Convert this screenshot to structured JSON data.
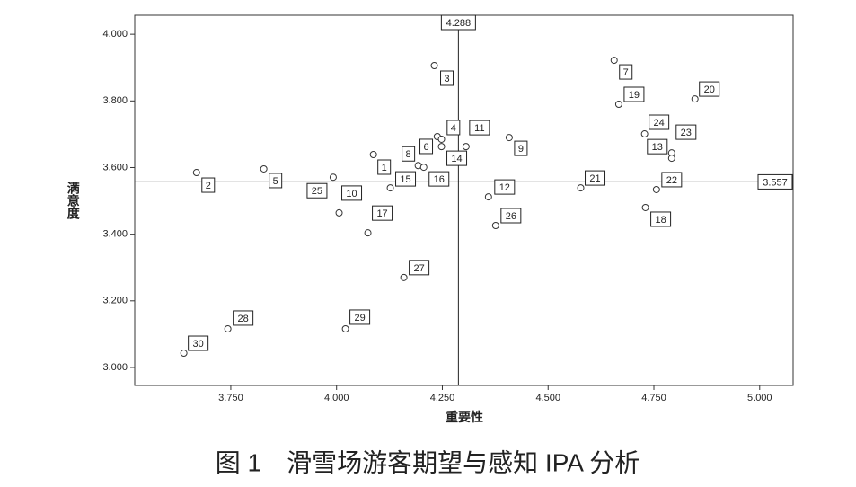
{
  "chart_data": {
    "type": "scatter",
    "x_label": "重要性",
    "y_label": "满意度",
    "caption": "图 1　滑雪场游客期望与感知 IPA 分析",
    "labels": [
      "1",
      "2",
      "3",
      "4",
      "5",
      "6",
      "7",
      "8",
      "9",
      "10",
      "11",
      "12",
      "13",
      "14",
      "15",
      "16",
      "17",
      "18",
      "19",
      "20",
      "21",
      "22",
      "23",
      "24",
      "25",
      "26",
      "27",
      "28",
      "29",
      "30"
    ],
    "x": [
      4.087,
      3.669,
      4.231,
      4.238,
      3.828,
      4.248,
      4.656,
      4.193,
      4.408,
      4.006,
      4.306,
      4.359,
      4.792,
      4.248,
      4.127,
      4.206,
      4.074,
      4.73,
      4.667,
      4.847,
      4.577,
      4.756,
      4.792,
      4.728,
      3.992,
      4.376,
      4.159,
      3.743,
      4.021,
      3.639
    ],
    "values": [
      3.639,
      3.585,
      3.906,
      3.693,
      3.596,
      3.685,
      3.922,
      3.606,
      3.69,
      3.464,
      3.663,
      3.512,
      3.644,
      3.663,
      3.539,
      3.601,
      3.404,
      3.48,
      3.79,
      3.806,
      3.539,
      3.534,
      3.628,
      3.701,
      3.571,
      3.426,
      3.27,
      3.116,
      3.116,
      3.043
    ],
    "ref_x": 4.288,
    "ref_y": 3.557,
    "xlim": [
      3.523,
      5.079
    ],
    "ylim": [
      2.946,
      4.057
    ],
    "xticks": [
      {
        "value": 3.75,
        "label": "3.750"
      },
      {
        "value": 4,
        "label": "4.000"
      },
      {
        "value": 4.25,
        "label": "4.250"
      },
      {
        "value": 4.5,
        "label": "4.500"
      },
      {
        "value": 4.75,
        "label": "4.750"
      },
      {
        "value": 5,
        "label": "5.000"
      }
    ],
    "yticks": [
      {
        "value": 3,
        "label": "3.000"
      },
      {
        "value": 3.2,
        "label": "3.200"
      },
      {
        "value": 3.4,
        "label": "3.400"
      },
      {
        "value": 3.6,
        "label": "3.600"
      },
      {
        "value": 3.8,
        "label": "3.800"
      },
      {
        "value": 4,
        "label": "4.000"
      }
    ]
  }
}
